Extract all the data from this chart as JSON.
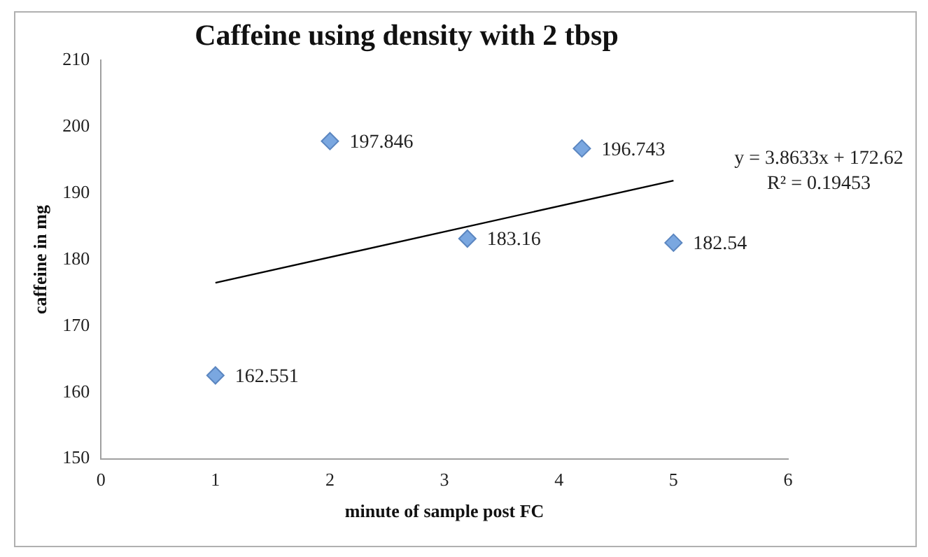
{
  "chart_data": {
    "type": "scatter",
    "title": "Caffeine using density with 2 tbsp",
    "xlabel": "minute of sample post FC",
    "ylabel": "caffeine in mg",
    "xlim": [
      0,
      6
    ],
    "xticks": [
      0,
      1,
      2,
      3,
      4,
      5,
      6
    ],
    "ylim": [
      150,
      210
    ],
    "yticks": [
      150,
      160,
      170,
      180,
      190,
      200,
      210
    ],
    "grid": false,
    "legend": false,
    "marker": "diamond",
    "series": [
      {
        "color": "#7aa7e0",
        "x": [
          1,
          2,
          3.2,
          4.2,
          5
        ],
        "values": [
          162.551,
          197.846,
          183.16,
          196.743,
          182.54
        ],
        "value_labels": [
          "162.551",
          "197.846",
          "183.16",
          "196.743",
          "182.54"
        ]
      },
      {
        "type": "line",
        "color": "#000000",
        "x": [
          1,
          5
        ],
        "values": [
          176.5,
          191.9
        ],
        "marker": "none"
      }
    ],
    "annotations": [
      "y = 3.8633x + 172.62",
      "R² = 0.19453"
    ]
  }
}
